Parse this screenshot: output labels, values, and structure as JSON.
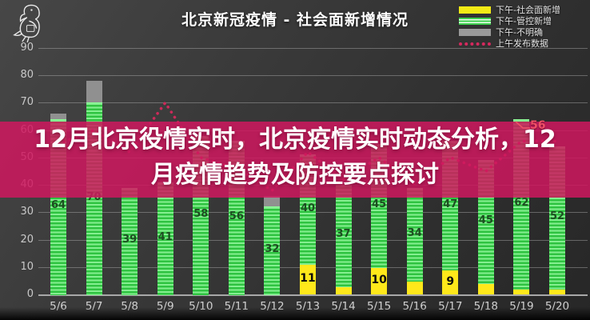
{
  "header": {
    "title": "北京新冠疫情 - 社会面新增情况",
    "logo": "parrot-line-drawing"
  },
  "legend": {
    "items": [
      {
        "label": "下午-社会面新增",
        "swatch": "yellow-solid",
        "color": "#f3ea15"
      },
      {
        "label": "下午-管控新增",
        "swatch": "green-striped",
        "color": "#3ecf4e"
      },
      {
        "label": "下午-不明确",
        "swatch": "gray-solid",
        "color": "#9a9a9a"
      },
      {
        "label": "上午发布数据",
        "swatch": "red-dotted",
        "color": "#d6295e"
      }
    ]
  },
  "overlay": {
    "line1": "12月北京役情实时，北京疫情实时动态分析，12",
    "line2": "月疫情趋势及防控要点探讨",
    "band_color": "#c11658",
    "text_color": "#ffffff"
  },
  "chart_data": {
    "type": "bar",
    "stacked": true,
    "title": "北京新冠疫情 - 社会面新增情况",
    "xlabel": "",
    "ylabel": "",
    "ylim": [
      0,
      90
    ],
    "yticks": [
      0,
      10,
      20,
      30,
      40,
      50,
      60,
      70,
      80,
      90
    ],
    "grid": true,
    "legend_position": "top-right",
    "categories": [
      "5/6",
      "5/7",
      "5/8",
      "5/9",
      "5/10",
      "5/11",
      "5/12",
      "5/13",
      "5/14",
      "5/15",
      "5/16",
      "5/17",
      "5/18",
      "5/19",
      "5/20"
    ],
    "series": [
      {
        "name": "下午-社会面新增",
        "role": "yellow",
        "color": "#ffe81a",
        "values": [
          0,
          0,
          0,
          0,
          0,
          0,
          0,
          11,
          3,
          10,
          5,
          9,
          4,
          2,
          2
        ],
        "labels_shown": true
      },
      {
        "name": "下午-管控新增",
        "role": "green",
        "color": "#2fc341",
        "values": [
          64,
          70,
          39,
          41,
          58,
          56,
          32,
          40,
          37,
          45,
          34,
          47,
          45,
          62,
          52
        ],
        "labels_shown": true
      },
      {
        "name": "下午-不明确",
        "role": "gray",
        "color": "#909090",
        "values": [
          2,
          8,
          0,
          0,
          0,
          0,
          4,
          0,
          0,
          0,
          0,
          0,
          0,
          0,
          0
        ],
        "labels_shown": false
      }
    ],
    "morning_line": {
      "name": "上午发布数据",
      "color": "#cc2a5a",
      "style": "dotted",
      "values_approx": [
        55,
        60,
        52,
        70,
        50,
        46,
        38,
        52,
        42,
        50,
        40,
        50,
        45,
        56,
        56
      ],
      "note": "line mostly hidden behind title band; visible peak ~70 at 5/9 and ~56 at 5/19-5/20"
    },
    "annotation": {
      "text": "56",
      "target": "5/19"
    }
  }
}
